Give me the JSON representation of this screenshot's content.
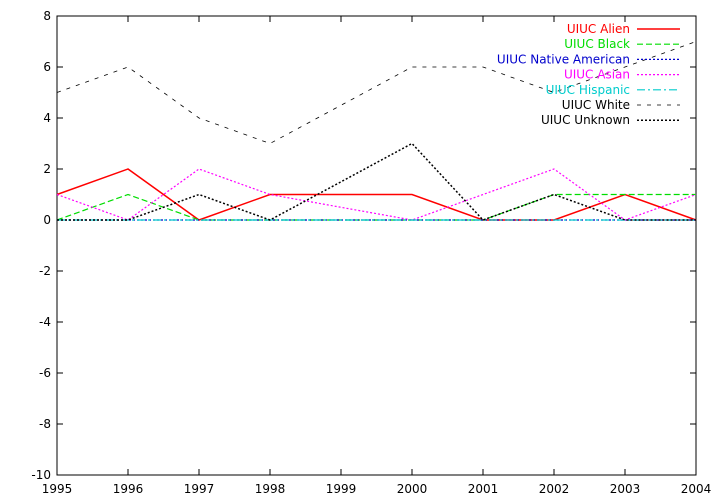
{
  "chart_data": {
    "type": "line",
    "x": [
      1995,
      1996,
      1997,
      1998,
      1999,
      2000,
      2001,
      2002,
      2003,
      2004
    ],
    "xlim": [
      1995,
      2004
    ],
    "ylim": [
      -10,
      8
    ],
    "x_ticks": [
      "1995",
      "1996",
      "1997",
      "1998",
      "1999",
      "2000",
      "2001",
      "2002",
      "2003",
      "2004"
    ],
    "y_ticks": [
      "8",
      "6",
      "4",
      "2",
      "0",
      "-2",
      "-4",
      "-6",
      "-8",
      "-10"
    ],
    "grid": false,
    "legend_position": "top-right",
    "series": [
      {
        "name": "UIUC Alien",
        "color": "#ff0000",
        "dash": "solid",
        "values": [
          1,
          2,
          0,
          1,
          1,
          1,
          0,
          0,
          1,
          0
        ]
      },
      {
        "name": "UIUC Black",
        "color": "#00dd00",
        "dash": "dashed",
        "values": [
          0,
          1,
          0,
          0,
          0,
          0,
          0,
          1,
          1,
          1
        ]
      },
      {
        "name": "UIUC Native American",
        "color": "#0000cc",
        "dash": "dotted",
        "values": [
          0,
          0,
          0,
          0,
          0,
          0,
          0,
          0,
          0,
          0
        ]
      },
      {
        "name": "UIUC Asian",
        "color": "#ff00ff",
        "dash": "dotted",
        "values": [
          1,
          0,
          2,
          1,
          0.5,
          0,
          1,
          2,
          0,
          1
        ]
      },
      {
        "name": "UIUC Hispanic",
        "color": "#00cccc",
        "dash": "dashdot",
        "values": [
          0,
          0,
          0,
          0,
          0,
          0,
          0,
          0,
          0,
          0
        ]
      },
      {
        "name": "UIUC White",
        "color": "#000000",
        "dash": "sparse",
        "values": [
          5,
          6,
          4,
          3,
          4.5,
          6,
          6,
          5,
          6,
          7
        ]
      },
      {
        "name": "UIUC Unknown",
        "color": "#000000",
        "dash": "dense",
        "values": [
          0,
          0,
          1,
          0,
          1.5,
          3,
          0,
          1,
          0,
          0
        ]
      }
    ]
  }
}
